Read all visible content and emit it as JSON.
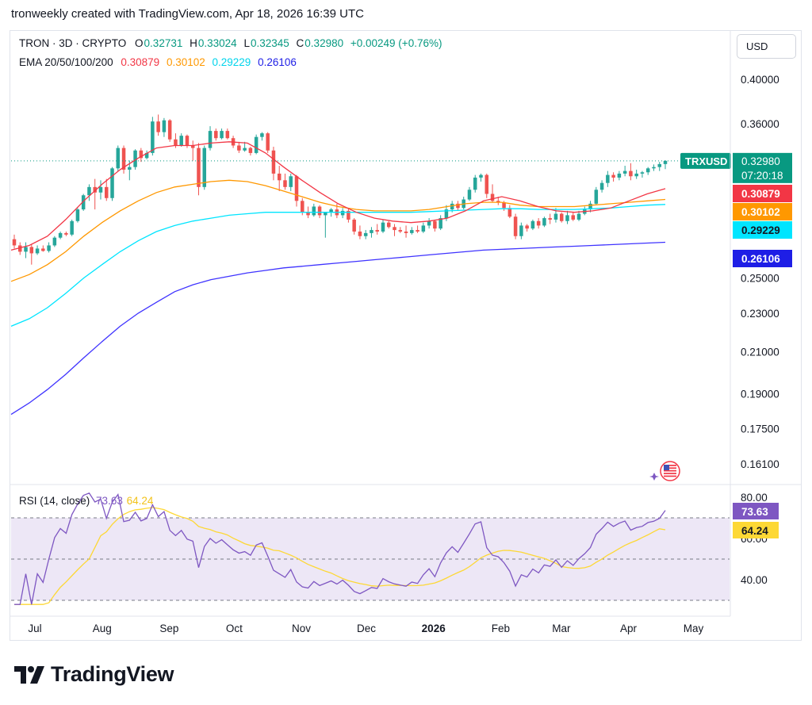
{
  "header": {
    "credit": "tronweekly created with TradingView.com, Apr 18, 2026 16:39 UTC"
  },
  "legend": {
    "symbol": "TRON · 3D · CRYPTO",
    "open_label": "O",
    "open": "0.32731",
    "high_label": "H",
    "high": "0.33024",
    "low_label": "L",
    "low": "0.32345",
    "close_label": "C",
    "close": "0.32980",
    "change": "+0.00249 (+0.76%)",
    "ema_label": "EMA 20/50/100/200",
    "ema20": "0.30879",
    "ema50": "0.30102",
    "ema100": "0.29229",
    "ema200": "0.26106",
    "rsi_label": "RSI (14, close)",
    "rsi_value": "73.63",
    "rsi_ma_value": "64.24"
  },
  "currency_button": "USD",
  "brand": "TradingView",
  "colors": {
    "up": "#26a69a",
    "down": "#ef5350",
    "ema20": "#f23645",
    "ema50": "#ff9800",
    "ema100": "#00e5ff",
    "ema200": "#3f33ff",
    "rsi": "#7e57c2",
    "rsi_ma": "#fdd835",
    "rsi_band": "#ede7f6",
    "label_symbol": "#089981",
    "label_ema20": "#f23645",
    "label_ema50": "#ff9800",
    "label_ema100": "#00e5ff",
    "label_ema200": "#1e1ee6",
    "label_rsi": "#7e57c2",
    "label_rsi_ma": "#fdd835"
  },
  "chart_data": {
    "type": "candlestick",
    "title": "TRON · 3D · CRYPTO",
    "price_scale": "log",
    "y_ticks": [
      "0.40000",
      "0.36000",
      "0.32980",
      "0.30879",
      "0.30102",
      "0.29229",
      "0.26106",
      "0.25000",
      "0.23000",
      "0.21000",
      "0.19000",
      "0.17500",
      "0.16100"
    ],
    "axis_ticks": [
      "0.40000",
      "0.36000",
      "0.25000",
      "0.23000",
      "0.21000",
      "0.19000",
      "0.17500",
      "0.16100"
    ],
    "x_ticks": [
      "Jul",
      "Aug",
      "Sep",
      "Oct",
      "Nov",
      "Dec",
      "2026",
      "Feb",
      "Mar",
      "Apr",
      "May"
    ],
    "time_range": [
      "2025-06-20",
      "2026-04-18"
    ],
    "candles": [
      {
        "o": 0.274,
        "h": 0.277,
        "l": 0.268,
        "c": 0.27
      },
      {
        "o": 0.27,
        "h": 0.272,
        "l": 0.264,
        "c": 0.266
      },
      {
        "o": 0.266,
        "h": 0.272,
        "l": 0.262,
        "c": 0.269
      },
      {
        "o": 0.269,
        "h": 0.271,
        "l": 0.258,
        "c": 0.265
      },
      {
        "o": 0.265,
        "h": 0.27,
        "l": 0.264,
        "c": 0.268
      },
      {
        "o": 0.268,
        "h": 0.27,
        "l": 0.266,
        "c": 0.2665
      },
      {
        "o": 0.2665,
        "h": 0.272,
        "l": 0.2655,
        "c": 0.27
      },
      {
        "o": 0.27,
        "h": 0.276,
        "l": 0.269,
        "c": 0.275
      },
      {
        "o": 0.275,
        "h": 0.279,
        "l": 0.274,
        "c": 0.278
      },
      {
        "o": 0.278,
        "h": 0.279,
        "l": 0.276,
        "c": 0.277
      },
      {
        "o": 0.277,
        "h": 0.287,
        "l": 0.276,
        "c": 0.286
      },
      {
        "o": 0.286,
        "h": 0.295,
        "l": 0.285,
        "c": 0.294
      },
      {
        "o": 0.294,
        "h": 0.305,
        "l": 0.293,
        "c": 0.304
      },
      {
        "o": 0.304,
        "h": 0.312,
        "l": 0.3,
        "c": 0.31
      },
      {
        "o": 0.31,
        "h": 0.316,
        "l": 0.294,
        "c": 0.306
      },
      {
        "o": 0.306,
        "h": 0.315,
        "l": 0.301,
        "c": 0.31
      },
      {
        "o": 0.31,
        "h": 0.316,
        "l": 0.3,
        "c": 0.302
      },
      {
        "o": 0.302,
        "h": 0.325,
        "l": 0.3,
        "c": 0.324
      },
      {
        "o": 0.324,
        "h": 0.342,
        "l": 0.322,
        "c": 0.34
      },
      {
        "o": 0.34,
        "h": 0.342,
        "l": 0.32,
        "c": 0.323
      },
      {
        "o": 0.323,
        "h": 0.33,
        "l": 0.315,
        "c": 0.325
      },
      {
        "o": 0.325,
        "h": 0.339,
        "l": 0.323,
        "c": 0.338
      },
      {
        "o": 0.338,
        "h": 0.34,
        "l": 0.329,
        "c": 0.332
      },
      {
        "o": 0.332,
        "h": 0.338,
        "l": 0.331,
        "c": 0.336
      },
      {
        "o": 0.336,
        "h": 0.366,
        "l": 0.334,
        "c": 0.362
      },
      {
        "o": 0.362,
        "h": 0.368,
        "l": 0.35,
        "c": 0.353
      },
      {
        "o": 0.353,
        "h": 0.365,
        "l": 0.349,
        "c": 0.363
      },
      {
        "o": 0.363,
        "h": 0.364,
        "l": 0.345,
        "c": 0.347
      },
      {
        "o": 0.347,
        "h": 0.352,
        "l": 0.34,
        "c": 0.342
      },
      {
        "o": 0.342,
        "h": 0.352,
        "l": 0.341,
        "c": 0.35
      },
      {
        "o": 0.35,
        "h": 0.351,
        "l": 0.34,
        "c": 0.342
      },
      {
        "o": 0.342,
        "h": 0.346,
        "l": 0.33,
        "c": 0.34
      },
      {
        "o": 0.34,
        "h": 0.344,
        "l": 0.304,
        "c": 0.31
      },
      {
        "o": 0.31,
        "h": 0.342,
        "l": 0.308,
        "c": 0.34
      },
      {
        "o": 0.34,
        "h": 0.358,
        "l": 0.338,
        "c": 0.354
      },
      {
        "o": 0.354,
        "h": 0.356,
        "l": 0.346,
        "c": 0.348
      },
      {
        "o": 0.348,
        "h": 0.356,
        "l": 0.347,
        "c": 0.354
      },
      {
        "o": 0.354,
        "h": 0.356,
        "l": 0.347,
        "c": 0.348
      },
      {
        "o": 0.348,
        "h": 0.35,
        "l": 0.34,
        "c": 0.342
      },
      {
        "o": 0.342,
        "h": 0.345,
        "l": 0.336,
        "c": 0.338
      },
      {
        "o": 0.338,
        "h": 0.345,
        "l": 0.337,
        "c": 0.34
      },
      {
        "o": 0.34,
        "h": 0.341,
        "l": 0.334,
        "c": 0.336
      },
      {
        "o": 0.336,
        "h": 0.351,
        "l": 0.335,
        "c": 0.349
      },
      {
        "o": 0.349,
        "h": 0.353,
        "l": 0.346,
        "c": 0.352
      },
      {
        "o": 0.352,
        "h": 0.353,
        "l": 0.336,
        "c": 0.338
      },
      {
        "o": 0.338,
        "h": 0.341,
        "l": 0.315,
        "c": 0.32
      },
      {
        "o": 0.32,
        "h": 0.326,
        "l": 0.307,
        "c": 0.315
      },
      {
        "o": 0.315,
        "h": 0.32,
        "l": 0.308,
        "c": 0.31
      },
      {
        "o": 0.31,
        "h": 0.32,
        "l": 0.307,
        "c": 0.318
      },
      {
        "o": 0.318,
        "h": 0.319,
        "l": 0.296,
        "c": 0.3
      },
      {
        "o": 0.3,
        "h": 0.302,
        "l": 0.29,
        "c": 0.292
      },
      {
        "o": 0.292,
        "h": 0.296,
        "l": 0.288,
        "c": 0.29
      },
      {
        "o": 0.29,
        "h": 0.298,
        "l": 0.289,
        "c": 0.296
      },
      {
        "o": 0.296,
        "h": 0.297,
        "l": 0.288,
        "c": 0.29
      },
      {
        "o": 0.29,
        "h": 0.292,
        "l": 0.275,
        "c": 0.292
      },
      {
        "o": 0.292,
        "h": 0.295,
        "l": 0.289,
        "c": 0.294
      },
      {
        "o": 0.294,
        "h": 0.298,
        "l": 0.288,
        "c": 0.29
      },
      {
        "o": 0.29,
        "h": 0.295,
        "l": 0.288,
        "c": 0.293
      },
      {
        "o": 0.293,
        "h": 0.295,
        "l": 0.285,
        "c": 0.287
      },
      {
        "o": 0.287,
        "h": 0.288,
        "l": 0.277,
        "c": 0.279
      },
      {
        "o": 0.279,
        "h": 0.283,
        "l": 0.274,
        "c": 0.276
      },
      {
        "o": 0.276,
        "h": 0.28,
        "l": 0.274,
        "c": 0.278
      },
      {
        "o": 0.278,
        "h": 0.282,
        "l": 0.275,
        "c": 0.28
      },
      {
        "o": 0.28,
        "h": 0.284,
        "l": 0.277,
        "c": 0.279
      },
      {
        "o": 0.279,
        "h": 0.287,
        "l": 0.278,
        "c": 0.285
      },
      {
        "o": 0.285,
        "h": 0.286,
        "l": 0.281,
        "c": 0.282
      },
      {
        "o": 0.282,
        "h": 0.284,
        "l": 0.276,
        "c": 0.28
      },
      {
        "o": 0.28,
        "h": 0.282,
        "l": 0.278,
        "c": 0.279
      },
      {
        "o": 0.279,
        "h": 0.283,
        "l": 0.275,
        "c": 0.278
      },
      {
        "o": 0.278,
        "h": 0.282,
        "l": 0.277,
        "c": 0.28
      },
      {
        "o": 0.28,
        "h": 0.283,
        "l": 0.278,
        "c": 0.279
      },
      {
        "o": 0.279,
        "h": 0.285,
        "l": 0.278,
        "c": 0.283
      },
      {
        "o": 0.283,
        "h": 0.288,
        "l": 0.281,
        "c": 0.286
      },
      {
        "o": 0.286,
        "h": 0.287,
        "l": 0.279,
        "c": 0.281
      },
      {
        "o": 0.281,
        "h": 0.29,
        "l": 0.28,
        "c": 0.288
      },
      {
        "o": 0.288,
        "h": 0.297,
        "l": 0.286,
        "c": 0.294
      },
      {
        "o": 0.294,
        "h": 0.3,
        "l": 0.292,
        "c": 0.298
      },
      {
        "o": 0.298,
        "h": 0.3,
        "l": 0.293,
        "c": 0.295
      },
      {
        "o": 0.295,
        "h": 0.303,
        "l": 0.294,
        "c": 0.301
      },
      {
        "o": 0.301,
        "h": 0.31,
        "l": 0.3,
        "c": 0.308
      },
      {
        "o": 0.308,
        "h": 0.319,
        "l": 0.306,
        "c": 0.317
      },
      {
        "o": 0.317,
        "h": 0.32,
        "l": 0.314,
        "c": 0.319
      },
      {
        "o": 0.319,
        "h": 0.32,
        "l": 0.302,
        "c": 0.305
      },
      {
        "o": 0.305,
        "h": 0.312,
        "l": 0.299,
        "c": 0.3
      },
      {
        "o": 0.3,
        "h": 0.303,
        "l": 0.297,
        "c": 0.299
      },
      {
        "o": 0.299,
        "h": 0.3,
        "l": 0.293,
        "c": 0.295
      },
      {
        "o": 0.295,
        "h": 0.297,
        "l": 0.288,
        "c": 0.289
      },
      {
        "o": 0.289,
        "h": 0.291,
        "l": 0.274,
        "c": 0.276
      },
      {
        "o": 0.276,
        "h": 0.285,
        "l": 0.274,
        "c": 0.283
      },
      {
        "o": 0.283,
        "h": 0.284,
        "l": 0.279,
        "c": 0.281
      },
      {
        "o": 0.281,
        "h": 0.287,
        "l": 0.28,
        "c": 0.286
      },
      {
        "o": 0.286,
        "h": 0.288,
        "l": 0.281,
        "c": 0.283
      },
      {
        "o": 0.283,
        "h": 0.289,
        "l": 0.282,
        "c": 0.288
      },
      {
        "o": 0.288,
        "h": 0.291,
        "l": 0.284,
        "c": 0.287
      },
      {
        "o": 0.287,
        "h": 0.295,
        "l": 0.285,
        "c": 0.291
      },
      {
        "o": 0.291,
        "h": 0.292,
        "l": 0.285,
        "c": 0.286
      },
      {
        "o": 0.286,
        "h": 0.293,
        "l": 0.284,
        "c": 0.29
      },
      {
        "o": 0.29,
        "h": 0.292,
        "l": 0.286,
        "c": 0.287
      },
      {
        "o": 0.287,
        "h": 0.293,
        "l": 0.286,
        "c": 0.291
      },
      {
        "o": 0.291,
        "h": 0.296,
        "l": 0.29,
        "c": 0.294
      },
      {
        "o": 0.294,
        "h": 0.3,
        "l": 0.292,
        "c": 0.298
      },
      {
        "o": 0.298,
        "h": 0.31,
        "l": 0.297,
        "c": 0.308
      },
      {
        "o": 0.308,
        "h": 0.315,
        "l": 0.306,
        "c": 0.313
      },
      {
        "o": 0.313,
        "h": 0.322,
        "l": 0.31,
        "c": 0.319
      },
      {
        "o": 0.319,
        "h": 0.321,
        "l": 0.314,
        "c": 0.317
      },
      {
        "o": 0.317,
        "h": 0.322,
        "l": 0.315,
        "c": 0.32
      },
      {
        "o": 0.32,
        "h": 0.326,
        "l": 0.318,
        "c": 0.322
      },
      {
        "o": 0.322,
        "h": 0.328,
        "l": 0.315,
        "c": 0.318
      },
      {
        "o": 0.318,
        "h": 0.323,
        "l": 0.316,
        "c": 0.32
      },
      {
        "o": 0.32,
        "h": 0.322,
        "l": 0.317,
        "c": 0.321
      },
      {
        "o": 0.321,
        "h": 0.325,
        "l": 0.319,
        "c": 0.324
      },
      {
        "o": 0.324,
        "h": 0.327,
        "l": 0.322,
        "c": 0.325
      },
      {
        "o": 0.325,
        "h": 0.329,
        "l": 0.322,
        "c": 0.3273
      },
      {
        "o": 0.32731,
        "h": 0.33024,
        "l": 0.32345,
        "c": 0.3298
      }
    ],
    "ema": [
      {
        "name": "EMA 20",
        "from": 0.267,
        "to": 0.30879
      },
      {
        "name": "EMA 50",
        "from": 0.248,
        "to": 0.30102
      },
      {
        "name": "EMA 100",
        "from": 0.223,
        "to": 0.29229
      },
      {
        "name": "EMA 200",
        "from": 0.181,
        "to": 0.26106
      }
    ],
    "rsi": {
      "name": "RSI (14, close)",
      "levels": [
        70,
        50,
        30
      ],
      "y_ticks": [
        "80.00",
        "60.00",
        "40.00"
      ],
      "current": 73.63,
      "ma_current": 64.24
    },
    "price_labels": [
      {
        "text": "TRXUSD",
        "value": "0.32980",
        "time": "07:20:18"
      },
      {
        "value": "0.30879"
      },
      {
        "value": "0.30102"
      },
      {
        "value": "0.29229"
      },
      {
        "value": "0.26106"
      }
    ]
  }
}
